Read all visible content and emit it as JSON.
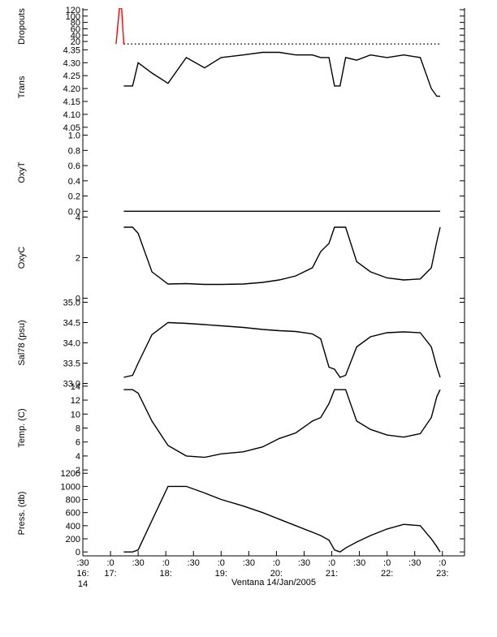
{
  "chart_data": [
    {
      "type": "line",
      "ylabel": "Dropouts",
      "ylim": [
        10,
        125
      ],
      "yticks": [
        20,
        40,
        60,
        80,
        100,
        120
      ],
      "x": [
        17.1,
        17.16,
        17.2,
        17.24,
        18,
        19,
        20,
        21,
        22,
        22.96
      ],
      "series": [
        {
          "color": "#ff0000",
          "values": [
            12,
            125,
            125,
            12,
            null,
            null,
            null,
            null,
            null,
            null
          ]
        },
        {
          "color": "#000000",
          "values": [
            null,
            null,
            null,
            12,
            12,
            12,
            12,
            12,
            12,
            12
          ]
        }
      ]
    },
    {
      "type": "line",
      "ylabel": "Trans",
      "ylim": [
        4.04,
        4.37
      ],
      "yticks": [
        {
          "value": 4.1,
          "label": "4.10"
        },
        4.15,
        {
          "value": 4.2,
          "label": "4.20"
        },
        4.25,
        {
          "value": 4.3,
          "label": "4.30"
        },
        4.35,
        {
          "value": 4.05,
          "label": "4.05"
        }
      ],
      "x": [
        17.24,
        17.4,
        17.5,
        17.75,
        18.04,
        18.37,
        18.7,
        19.0,
        19.4,
        19.75,
        20.05,
        20.35,
        20.65,
        20.8,
        20.95,
        21.05,
        21.15,
        21.25,
        21.45,
        21.7,
        22.0,
        22.3,
        22.6,
        22.8,
        22.9,
        22.96
      ],
      "series": [
        {
          "color": "#000000",
          "values": [
            4.21,
            4.21,
            4.3,
            4.26,
            4.22,
            4.32,
            4.28,
            4.32,
            4.33,
            4.34,
            4.34,
            4.33,
            4.33,
            4.32,
            4.32,
            4.21,
            4.21,
            4.32,
            4.31,
            4.33,
            4.32,
            4.33,
            4.32,
            4.2,
            4.17,
            4.17
          ]
        }
      ]
    },
    {
      "type": "line",
      "ylabel": "OxyT",
      "ylim": [
        -0.05,
        1.07
      ],
      "yticks": [
        {
          "value": 0,
          "label": "0.0"
        },
        0.2,
        0.4,
        0.6,
        0.8,
        {
          "value": 1,
          "label": "1.0"
        }
      ],
      "x": [
        17.24,
        18,
        19,
        20,
        21,
        22,
        22.96
      ],
      "series": [
        {
          "color": "#000000",
          "values": [
            0,
            0,
            0,
            0,
            0,
            0,
            0
          ]
        }
      ]
    },
    {
      "type": "line",
      "ylabel": "OxyC",
      "ylim": [
        -0.1,
        4.1
      ],
      "yticks": [
        0,
        2,
        4
      ],
      "x": [
        17.24,
        17.4,
        17.5,
        17.75,
        18.04,
        18.37,
        18.7,
        19.0,
        19.4,
        19.75,
        20.05,
        20.35,
        20.65,
        20.8,
        20.95,
        21.05,
        21.15,
        21.25,
        21.45,
        21.7,
        22.0,
        22.3,
        22.6,
        22.8,
        22.9,
        22.96
      ],
      "series": [
        {
          "color": "#000000",
          "values": [
            3.5,
            3.5,
            3.2,
            1.3,
            0.7,
            0.72,
            0.68,
            0.68,
            0.7,
            0.78,
            0.9,
            1.1,
            1.5,
            2.3,
            2.7,
            3.5,
            3.5,
            3.5,
            1.8,
            1.3,
            1.0,
            0.9,
            0.95,
            1.5,
            2.8,
            3.5
          ]
        }
      ]
    },
    {
      "type": "line",
      "ylabel": "Sal78 (psu)",
      "ylim": [
        32.95,
        35.05
      ],
      "yticks": [
        {
          "value": 33,
          "label": "33.0"
        },
        33.5,
        {
          "value": 34,
          "label": "34.0"
        },
        34.5,
        {
          "value": 35,
          "label": "35.0"
        }
      ],
      "x": [
        17.24,
        17.4,
        17.5,
        17.75,
        18.04,
        18.37,
        18.7,
        19.0,
        19.4,
        19.75,
        20.05,
        20.35,
        20.65,
        20.8,
        20.95,
        21.05,
        21.15,
        21.25,
        21.45,
        21.7,
        22.0,
        22.3,
        22.6,
        22.8,
        22.9,
        22.96
      ],
      "series": [
        {
          "color": "#000000",
          "values": [
            33.15,
            33.2,
            33.5,
            34.2,
            34.5,
            34.48,
            34.45,
            34.42,
            34.38,
            34.33,
            34.3,
            34.28,
            34.22,
            34.1,
            33.4,
            33.35,
            33.15,
            33.2,
            33.9,
            34.15,
            34.25,
            34.27,
            34.25,
            33.9,
            33.4,
            33.15
          ]
        }
      ]
    },
    {
      "type": "line",
      "ylabel": "Temp. (C)",
      "ylim": [
        1.9,
        14.1
      ],
      "yticks": [
        2,
        4,
        6,
        8,
        10,
        12,
        14
      ],
      "x": [
        17.24,
        17.4,
        17.5,
        17.75,
        18.04,
        18.37,
        18.7,
        19.0,
        19.4,
        19.75,
        20.05,
        20.35,
        20.65,
        20.8,
        20.95,
        21.05,
        21.15,
        21.25,
        21.45,
        21.7,
        22.0,
        22.3,
        22.6,
        22.8,
        22.9,
        22.96
      ],
      "series": [
        {
          "color": "#000000",
          "values": [
            13.5,
            13.5,
            13,
            9,
            5.5,
            4,
            3.8,
            4.3,
            4.6,
            5.3,
            6.5,
            7.3,
            9,
            9.5,
            11.5,
            13.5,
            13.5,
            13.5,
            9,
            7.8,
            7,
            6.7,
            7.2,
            9.5,
            12.5,
            13.5
          ]
        }
      ]
    },
    {
      "type": "line",
      "ylabel": "Press. (db)",
      "ylim": [
        -60,
        1240
      ],
      "yticks": [
        0,
        200,
        400,
        600,
        800,
        1000,
        1200
      ],
      "x": [
        17.24,
        17.4,
        17.5,
        17.75,
        18.04,
        18.37,
        18.7,
        19.0,
        19.4,
        19.75,
        20.05,
        20.35,
        20.65,
        20.8,
        20.95,
        21.05,
        21.15,
        21.25,
        21.45,
        21.7,
        22.0,
        22.3,
        22.6,
        22.8,
        22.9,
        22.96
      ],
      "series": [
        {
          "color": "#000000",
          "values": [
            0,
            0,
            30,
            480,
            1000,
            1000,
            900,
            800,
            700,
            600,
            500,
            400,
            300,
            250,
            180,
            30,
            0,
            60,
            150,
            250,
            350,
            420,
            400,
            200,
            80,
            0
          ]
        }
      ],
      "xlim": [
        16.5,
        23.4
      ],
      "xticks": [
        {
          "value": 16.5,
          "label": ":30"
        },
        {
          "value": 17,
          "label": ":0"
        },
        {
          "value": 17.5,
          "label": ":30"
        },
        {
          "value": 18,
          "label": ":0"
        },
        {
          "value": 18.5,
          "label": ":30"
        },
        {
          "value": 19,
          "label": ":0"
        },
        {
          "value": 19.5,
          "label": ":30"
        },
        {
          "value": 20,
          "label": ":0"
        },
        {
          "value": 20.5,
          "label": ":30"
        },
        {
          "value": 21,
          "label": ":0"
        },
        {
          "value": 21.5,
          "label": ":30"
        },
        {
          "value": 22,
          "label": ":0"
        },
        {
          "value": 22.5,
          "label": ":30"
        },
        {
          "value": 23,
          "label": ":0"
        }
      ],
      "hour_labels": [
        {
          "value": 16.5,
          "label": "16:"
        },
        {
          "value": 17,
          "label": "17:"
        },
        {
          "value": 18,
          "label": "18:"
        },
        {
          "value": 19,
          "label": "19:"
        },
        {
          "value": 20,
          "label": "20:"
        },
        {
          "value": 21,
          "label": "21:"
        },
        {
          "value": 22,
          "label": "22:"
        },
        {
          "value": 23,
          "label": "23:"
        }
      ],
      "date_label": "14",
      "xlabel": "Ventana 14/Jan/2005"
    }
  ]
}
